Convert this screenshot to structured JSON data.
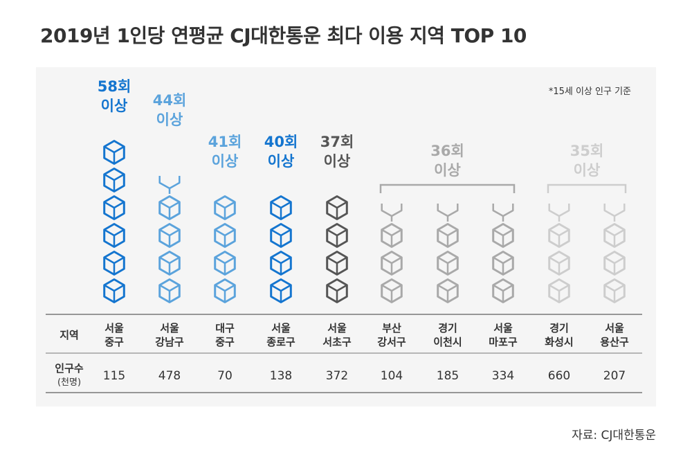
{
  "title": "2019년 1인당 연평균 CJ대한통운 최다 이용 지역 TOP 10",
  "note": "*15세 이상 인구 기준",
  "source": "자료: CJ대한통운",
  "colors": {
    "tier1": "#1475cf",
    "tier2": "#5ba3dc",
    "tier3": "#777777",
    "tier4": "#a9a9a9",
    "tier5": "#cdcdcd",
    "row_line": "#777777"
  },
  "chart_data": {
    "type": "table",
    "unit_label": "이상",
    "table": {
      "row_headers": [
        "지역",
        "인구수",
        "(천명)"
      ],
      "regions": [
        [
          "서울",
          "중구"
        ],
        [
          "서울",
          "강남구"
        ],
        [
          "대구",
          "중구"
        ],
        [
          "서울",
          "종로구"
        ],
        [
          "서울",
          "서초구"
        ],
        [
          "부산",
          "강서구"
        ],
        [
          "경기",
          "이천시"
        ],
        [
          "서울",
          "마포구"
        ],
        [
          "경기",
          "화성시"
        ],
        [
          "서울",
          "용산구"
        ]
      ],
      "population_thousands": [
        "115",
        "478",
        "70",
        "138",
        "372",
        "104",
        "185",
        "334",
        "660",
        "207"
      ]
    },
    "tiers": [
      {
        "label": "58회",
        "suffix": "이상",
        "value": 58,
        "columns": [
          0
        ],
        "color": "#1475cf"
      },
      {
        "label": "44회",
        "suffix": "이상",
        "value": 44,
        "columns": [
          1
        ],
        "color": "#5ba3dc"
      },
      {
        "label": "41회",
        "suffix": "이상",
        "value": 41,
        "columns": [
          2
        ],
        "color": "#5ba3dc"
      },
      {
        "label": "40회",
        "suffix": "이상",
        "value": 40,
        "columns": [
          3
        ],
        "color": "#1475cf"
      },
      {
        "label": "37회",
        "suffix": "이상",
        "value": 37,
        "columns": [
          4
        ],
        "color": "#555555"
      },
      {
        "label": "36회",
        "suffix": "이상",
        "value": 36,
        "columns": [
          5,
          6,
          7
        ],
        "color": "#a9a9a9"
      },
      {
        "label": "35회",
        "suffix": "이상",
        "value": 35,
        "columns": [
          8,
          9
        ],
        "color": "#cdcdcd"
      }
    ],
    "box_icons_per_column": [
      6,
      4.5,
      4,
      4,
      4,
      3.5,
      3.5,
      3.5,
      3.5,
      3.5
    ]
  }
}
